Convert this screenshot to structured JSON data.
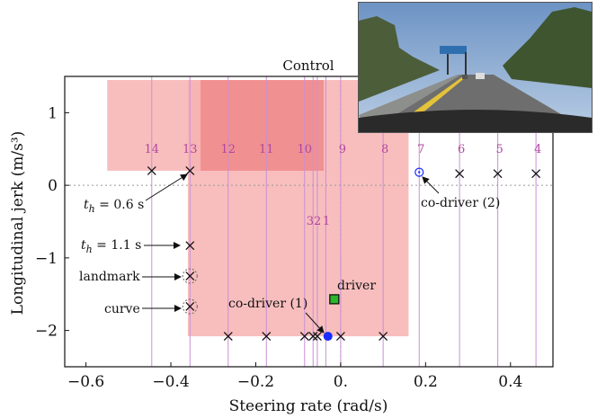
{
  "chart_data": {
    "type": "scatter",
    "title": "Control",
    "xlabel": "Steering rate (rad/s)",
    "ylabel": "Longitudinal jerk (m/s³)",
    "xlim": [
      -0.65,
      0.5
    ],
    "ylim": [
      -2.5,
      1.5
    ],
    "xticks": [
      -0.6,
      -0.4,
      -0.2,
      0.0,
      0.2,
      0.4
    ],
    "xtick_labels": [
      "−0.6",
      "−0.4",
      "−0.2",
      "0.",
      "0.2",
      "0.4"
    ],
    "yticks": [
      -2,
      -1,
      0,
      1
    ],
    "ytick_labels": [
      "−2",
      "−1",
      "0",
      "1"
    ],
    "grid": false,
    "shaded_regions": [
      {
        "x": [
          -0.55,
          -0.04
        ],
        "y": [
          0.2,
          1.45
        ],
        "color": "#f7b3b3"
      },
      {
        "x": [
          -0.36,
          0.16
        ],
        "y": [
          -2.08,
          1.45
        ],
        "color": "#f7b3b3"
      },
      {
        "x": [
          -0.33,
          -0.04
        ],
        "y": [
          0.2,
          1.45
        ],
        "color": "#f08a8a"
      }
    ],
    "dashed_lines": [
      {
        "axis": "y",
        "value": 0
      },
      {
        "axis": "x",
        "value": 0
      }
    ],
    "columns": [
      {
        "label": "14",
        "x": -0.445
      },
      {
        "label": "13",
        "x": -0.355
      },
      {
        "label": "12",
        "x": -0.265
      },
      {
        "label": "11",
        "x": -0.175
      },
      {
        "label": "10",
        "x": -0.085
      },
      {
        "label": "9",
        "x": 0.0
      },
      {
        "label": "8",
        "x": 0.1
      },
      {
        "label": "7",
        "x": 0.185
      },
      {
        "label": "6",
        "x": 0.28
      },
      {
        "label": "5",
        "x": 0.37
      },
      {
        "label": "4",
        "x": 0.46
      },
      {
        "label": "3",
        "x": -0.065
      },
      {
        "label": "2",
        "x": -0.055
      },
      {
        "label": "1",
        "x": -0.035
      }
    ],
    "short_column_labels": [
      "3",
      "2",
      "1"
    ],
    "candidates": [
      {
        "x": -0.445,
        "y": 0.2
      },
      {
        "x": -0.355,
        "y": 0.2
      },
      {
        "x": 0.28,
        "y": 0.16
      },
      {
        "x": 0.37,
        "y": 0.16
      },
      {
        "x": 0.46,
        "y": 0.16
      },
      {
        "x": -0.265,
        "y": -2.08
      },
      {
        "x": -0.175,
        "y": -2.08
      },
      {
        "x": -0.085,
        "y": -2.08
      },
      {
        "x": -0.065,
        "y": -2.08
      },
      {
        "x": -0.055,
        "y": -2.08
      },
      {
        "x": 0.0,
        "y": -2.08
      },
      {
        "x": 0.1,
        "y": -2.08
      },
      {
        "x": -0.355,
        "y": -0.83
      }
    ],
    "landmark_marker": {
      "x": -0.355,
      "y": -1.25
    },
    "curve_marker": {
      "x": -0.355,
      "y": -1.67
    },
    "driver": {
      "x": -0.015,
      "y": -1.57,
      "color": "#2bb62b"
    },
    "co_driver_1": {
      "x": -0.03,
      "y": -2.08,
      "color": "#1a2bff"
    },
    "co_driver_2": {
      "x": 0.185,
      "y": 0.18,
      "color": "#1a2bff"
    },
    "annotations": {
      "th06": "t_h = 0.6 s",
      "th11": "t_h = 1.1 s",
      "landmark": "landmark",
      "curve": "curve",
      "driver": "driver",
      "co_driver_1": "co-driver (1)",
      "co_driver_2": "co-driver (2)"
    }
  }
}
